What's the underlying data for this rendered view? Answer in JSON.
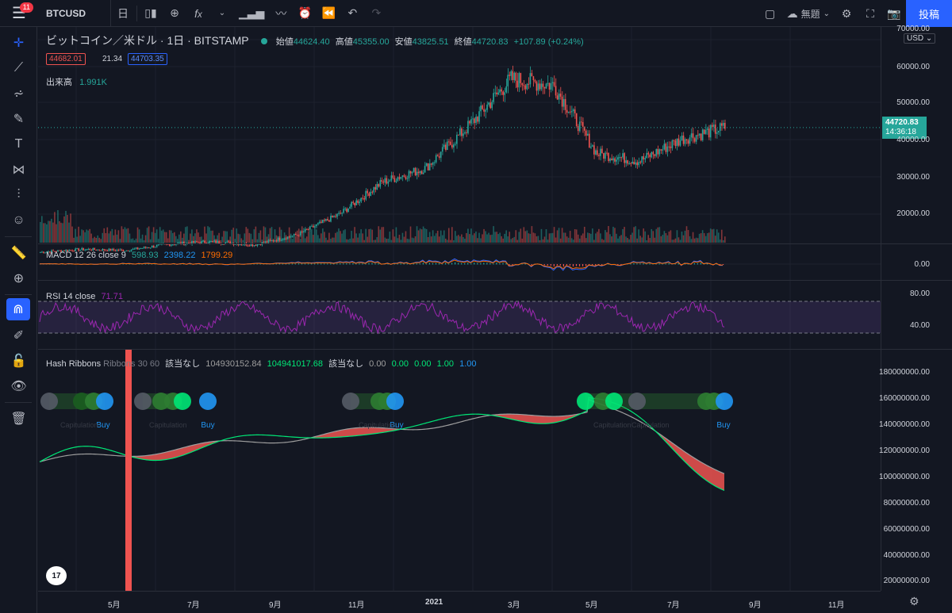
{
  "header": {
    "symbol": "BTCUSD",
    "notification_count": "11",
    "interval": "日",
    "layout_name": "無題",
    "post_label": "投稿"
  },
  "legend": {
    "title": "ビットコイン／米ドル · 1日 · BITSTAMP",
    "open_label": "始値",
    "open": "44624.40",
    "high_label": "高値",
    "high": "45355.00",
    "low_label": "安値",
    "low": "43825.51",
    "close_label": "終値",
    "close": "44720.83",
    "change": "+107.89 (+0.24%)",
    "bid": "44682.01",
    "spread": "21.34",
    "ask": "44703.35",
    "volume_label": "出来高",
    "volume": "1.991K"
  },
  "macd": {
    "label": "MACD 12 26 close 9",
    "v1": "598.93",
    "v2": "2398.22",
    "v3": "1799.29"
  },
  "rsi": {
    "label": "RSI 14 close",
    "value": "71.71"
  },
  "hash": {
    "name": "Hash Ribbons",
    "params": "Ribbons 30 60",
    "na1": "該当なし",
    "v1": "104930152.84",
    "v2": "104941017.68",
    "na2": "該当なし",
    "v3": "0.00",
    "v4": "0.00",
    "v5": "0.00",
    "v6": "1.00",
    "v7": "1.00",
    "buy_label": "Buy",
    "capitulation_label": "Capitulation"
  },
  "price_axis": {
    "currency": "USD",
    "labels": [
      "70000.00",
      "60000.00",
      "50000.00",
      "40000.00",
      "30000.00",
      "20000.00"
    ],
    "last_price": "44720.83",
    "countdown": "14:36:18",
    "macd_labels": [
      "0.00"
    ],
    "rsi_labels": [
      "80.00",
      "40.00"
    ],
    "hash_labels": [
      "180000000.00",
      "160000000.00",
      "140000000.00",
      "120000000.00",
      "100000000.00",
      "80000000.00",
      "60000000.00",
      "40000000.00",
      "20000000.00"
    ]
  },
  "time_axis": [
    "5月",
    "7月",
    "9月",
    "11月",
    "2021",
    "3月",
    "5月",
    "7月",
    "9月",
    "11月"
  ],
  "colors": {
    "up": "#26a69a",
    "down": "#ef5350",
    "accent": "#2962ff",
    "rsi": "#9c27b0",
    "macd": "#2962ff",
    "signal": "#ff6d00",
    "fast": "#00e676",
    "slow": "#9e9e9e"
  },
  "chart_data": {
    "type": "candlestick",
    "title": "ビットコイン／米ドル · 1日 · BITSTAMP",
    "x": [
      "2020-04",
      "2020-05",
      "2020-06",
      "2020-07",
      "2020-08",
      "2020-09",
      "2020-10",
      "2020-11",
      "2020-12",
      "2021-01",
      "2021-02",
      "2021-03",
      "2021-04",
      "2021-05",
      "2021-06",
      "2021-07",
      "2021-08"
    ],
    "close": [
      8700,
      9500,
      9200,
      11000,
      11700,
      10800,
      13700,
      19700,
      29000,
      33000,
      45000,
      58800,
      57000,
      37300,
      35000,
      41500,
      44720
    ],
    "ylim": [
      5000,
      72000
    ]
  }
}
